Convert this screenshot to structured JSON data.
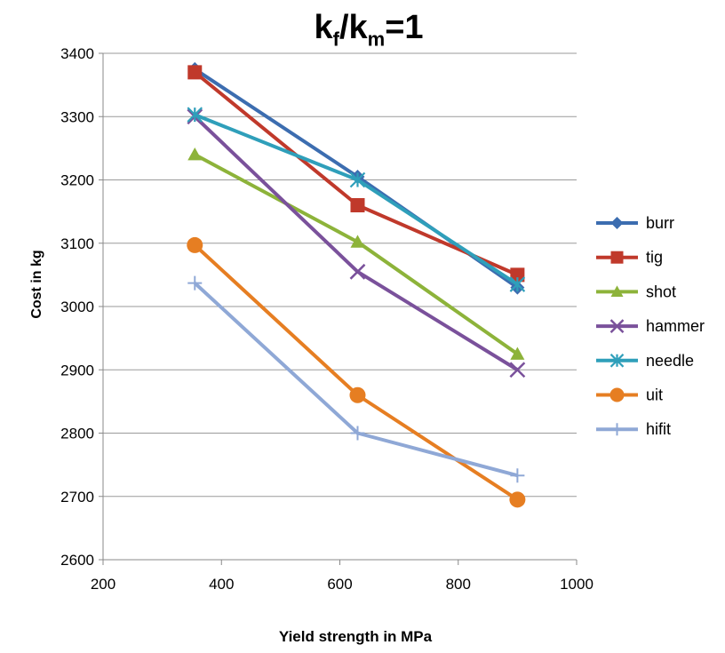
{
  "chart_data": {
    "type": "line",
    "title": {
      "main": "k",
      "sub1": "f",
      "sep": "/k",
      "sub2": "m",
      "tail": "=1"
    },
    "xlabel": "Yield strength in MPa",
    "ylabel": "Cost in kg",
    "xlim": [
      200,
      1000
    ],
    "ylim": [
      2600,
      3400
    ],
    "xticks": [
      "200",
      "400",
      "600",
      "800",
      "1000"
    ],
    "yticks": [
      "2600",
      "2700",
      "2800",
      "2900",
      "3000",
      "3100",
      "3200",
      "3300",
      "3400"
    ],
    "grid": "horizontal",
    "legend_position": "right",
    "x": [
      355,
      630,
      900
    ],
    "series": [
      {
        "name": "burr",
        "values": [
          3375,
          3205,
          3030
        ],
        "color": "#3c6db0",
        "marker": "diamond"
      },
      {
        "name": "tig",
        "values": [
          3370,
          3160,
          3050
        ],
        "color": "#c0392b",
        "marker": "square"
      },
      {
        "name": "shot",
        "values": [
          3240,
          3102,
          2925
        ],
        "color": "#8db33a",
        "marker": "triangle"
      },
      {
        "name": "hammer",
        "values": [
          3300,
          3055,
          2900
        ],
        "color": "#7a519b",
        "marker": "x"
      },
      {
        "name": "needle",
        "values": [
          3303,
          3200,
          3035
        ],
        "color": "#2f9fba",
        "marker": "star"
      },
      {
        "name": "uit",
        "values": [
          3097,
          2860,
          2695
        ],
        "color": "#e67e22",
        "marker": "circle"
      },
      {
        "name": "hifit",
        "values": [
          3037,
          2800,
          2733
        ],
        "color": "#8fa8d6",
        "marker": "plus"
      }
    ]
  }
}
